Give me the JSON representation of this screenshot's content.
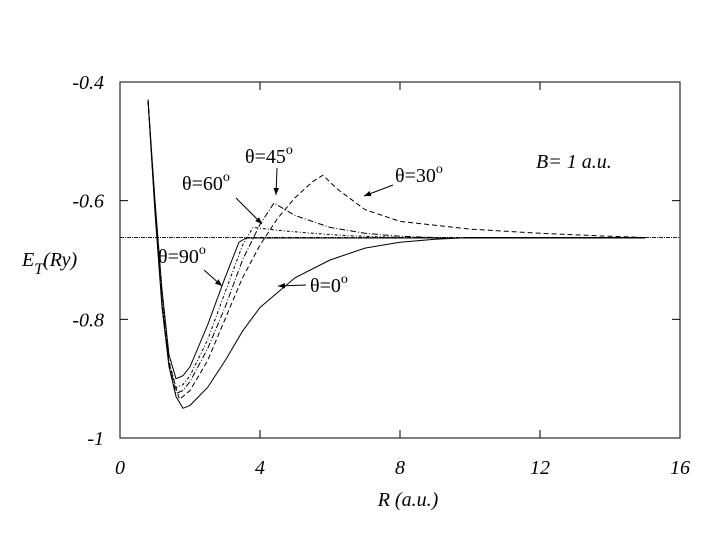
{
  "chart_data": {
    "type": "line",
    "xlabel": "R (a.u.)",
    "ylabel": {
      "symbol": "E",
      "subscript": "T",
      "unit": "(Ry)"
    },
    "annotation": "B= 1 a.u.",
    "degree_mark": "o",
    "xlim": [
      0,
      16
    ],
    "ylim": [
      -1,
      -0.4
    ],
    "xticks": [
      0,
      4,
      8,
      12,
      16
    ],
    "yticks": [
      -1,
      -0.8,
      -0.6,
      -0.4
    ],
    "reference_line": -0.662,
    "series": [
      {
        "name": "θ=0",
        "color": "#000",
        "dash": "none",
        "x": [
          0.8,
          1.0,
          1.2,
          1.4,
          1.6,
          1.8,
          2.0,
          2.5,
          3,
          3.5,
          4,
          5,
          6,
          7,
          8,
          9,
          10,
          15
        ],
        "values": [
          -0.43,
          -0.62,
          -0.78,
          -0.88,
          -0.93,
          -0.95,
          -0.945,
          -0.915,
          -0.87,
          -0.82,
          -0.78,
          -0.73,
          -0.7,
          -0.68,
          -0.67,
          -0.665,
          -0.662,
          -0.662
        ]
      },
      {
        "name": "θ=30",
        "color": "#000",
        "dash": "5,3",
        "x": [
          0.8,
          1.0,
          1.2,
          1.4,
          1.7,
          2,
          2.5,
          3,
          3.5,
          4,
          4.5,
          5,
          5.5,
          5.8,
          6.2,
          7,
          8,
          10,
          12,
          14,
          15
        ],
        "values": [
          -0.43,
          -0.615,
          -0.775,
          -0.875,
          -0.935,
          -0.92,
          -0.87,
          -0.8,
          -0.73,
          -0.675,
          -0.63,
          -0.595,
          -0.568,
          -0.557,
          -0.58,
          -0.615,
          -0.635,
          -0.648,
          -0.655,
          -0.66,
          -0.662
        ]
      },
      {
        "name": "θ=45",
        "color": "#000",
        "dash": "6,2,1,2",
        "x": [
          0.8,
          1.0,
          1.2,
          1.4,
          1.6,
          1.8,
          2.0,
          2.5,
          3,
          3.5,
          4,
          4.4,
          5,
          6,
          7,
          8,
          9
        ],
        "values": [
          -0.43,
          -0.612,
          -0.77,
          -0.872,
          -0.925,
          -0.92,
          -0.905,
          -0.85,
          -0.78,
          -0.7,
          -0.64,
          -0.604,
          -0.625,
          -0.645,
          -0.655,
          -0.66,
          -0.662
        ]
      },
      {
        "name": "θ=60",
        "color": "#000",
        "dash": "3,2,1,2",
        "x": [
          0.8,
          1.0,
          1.2,
          1.4,
          1.6,
          1.8,
          2.0,
          2.5,
          3,
          3.5,
          3.8,
          4.5,
          5.5,
          6.5,
          8
        ],
        "values": [
          -0.43,
          -0.61,
          -0.765,
          -0.87,
          -0.915,
          -0.91,
          -0.895,
          -0.835,
          -0.755,
          -0.675,
          -0.645,
          -0.65,
          -0.655,
          -0.659,
          -0.662
        ]
      },
      {
        "name": "θ=90",
        "color": "#000",
        "dash": "none",
        "x": [
          0.8,
          1.0,
          1.2,
          1.4,
          1.6,
          1.8,
          2.0,
          2.5,
          3,
          3.4,
          3.6,
          15
        ],
        "values": [
          -0.43,
          -0.6,
          -0.75,
          -0.86,
          -0.9,
          -0.895,
          -0.88,
          -0.81,
          -0.73,
          -0.67,
          -0.663,
          -0.663
        ]
      }
    ]
  }
}
